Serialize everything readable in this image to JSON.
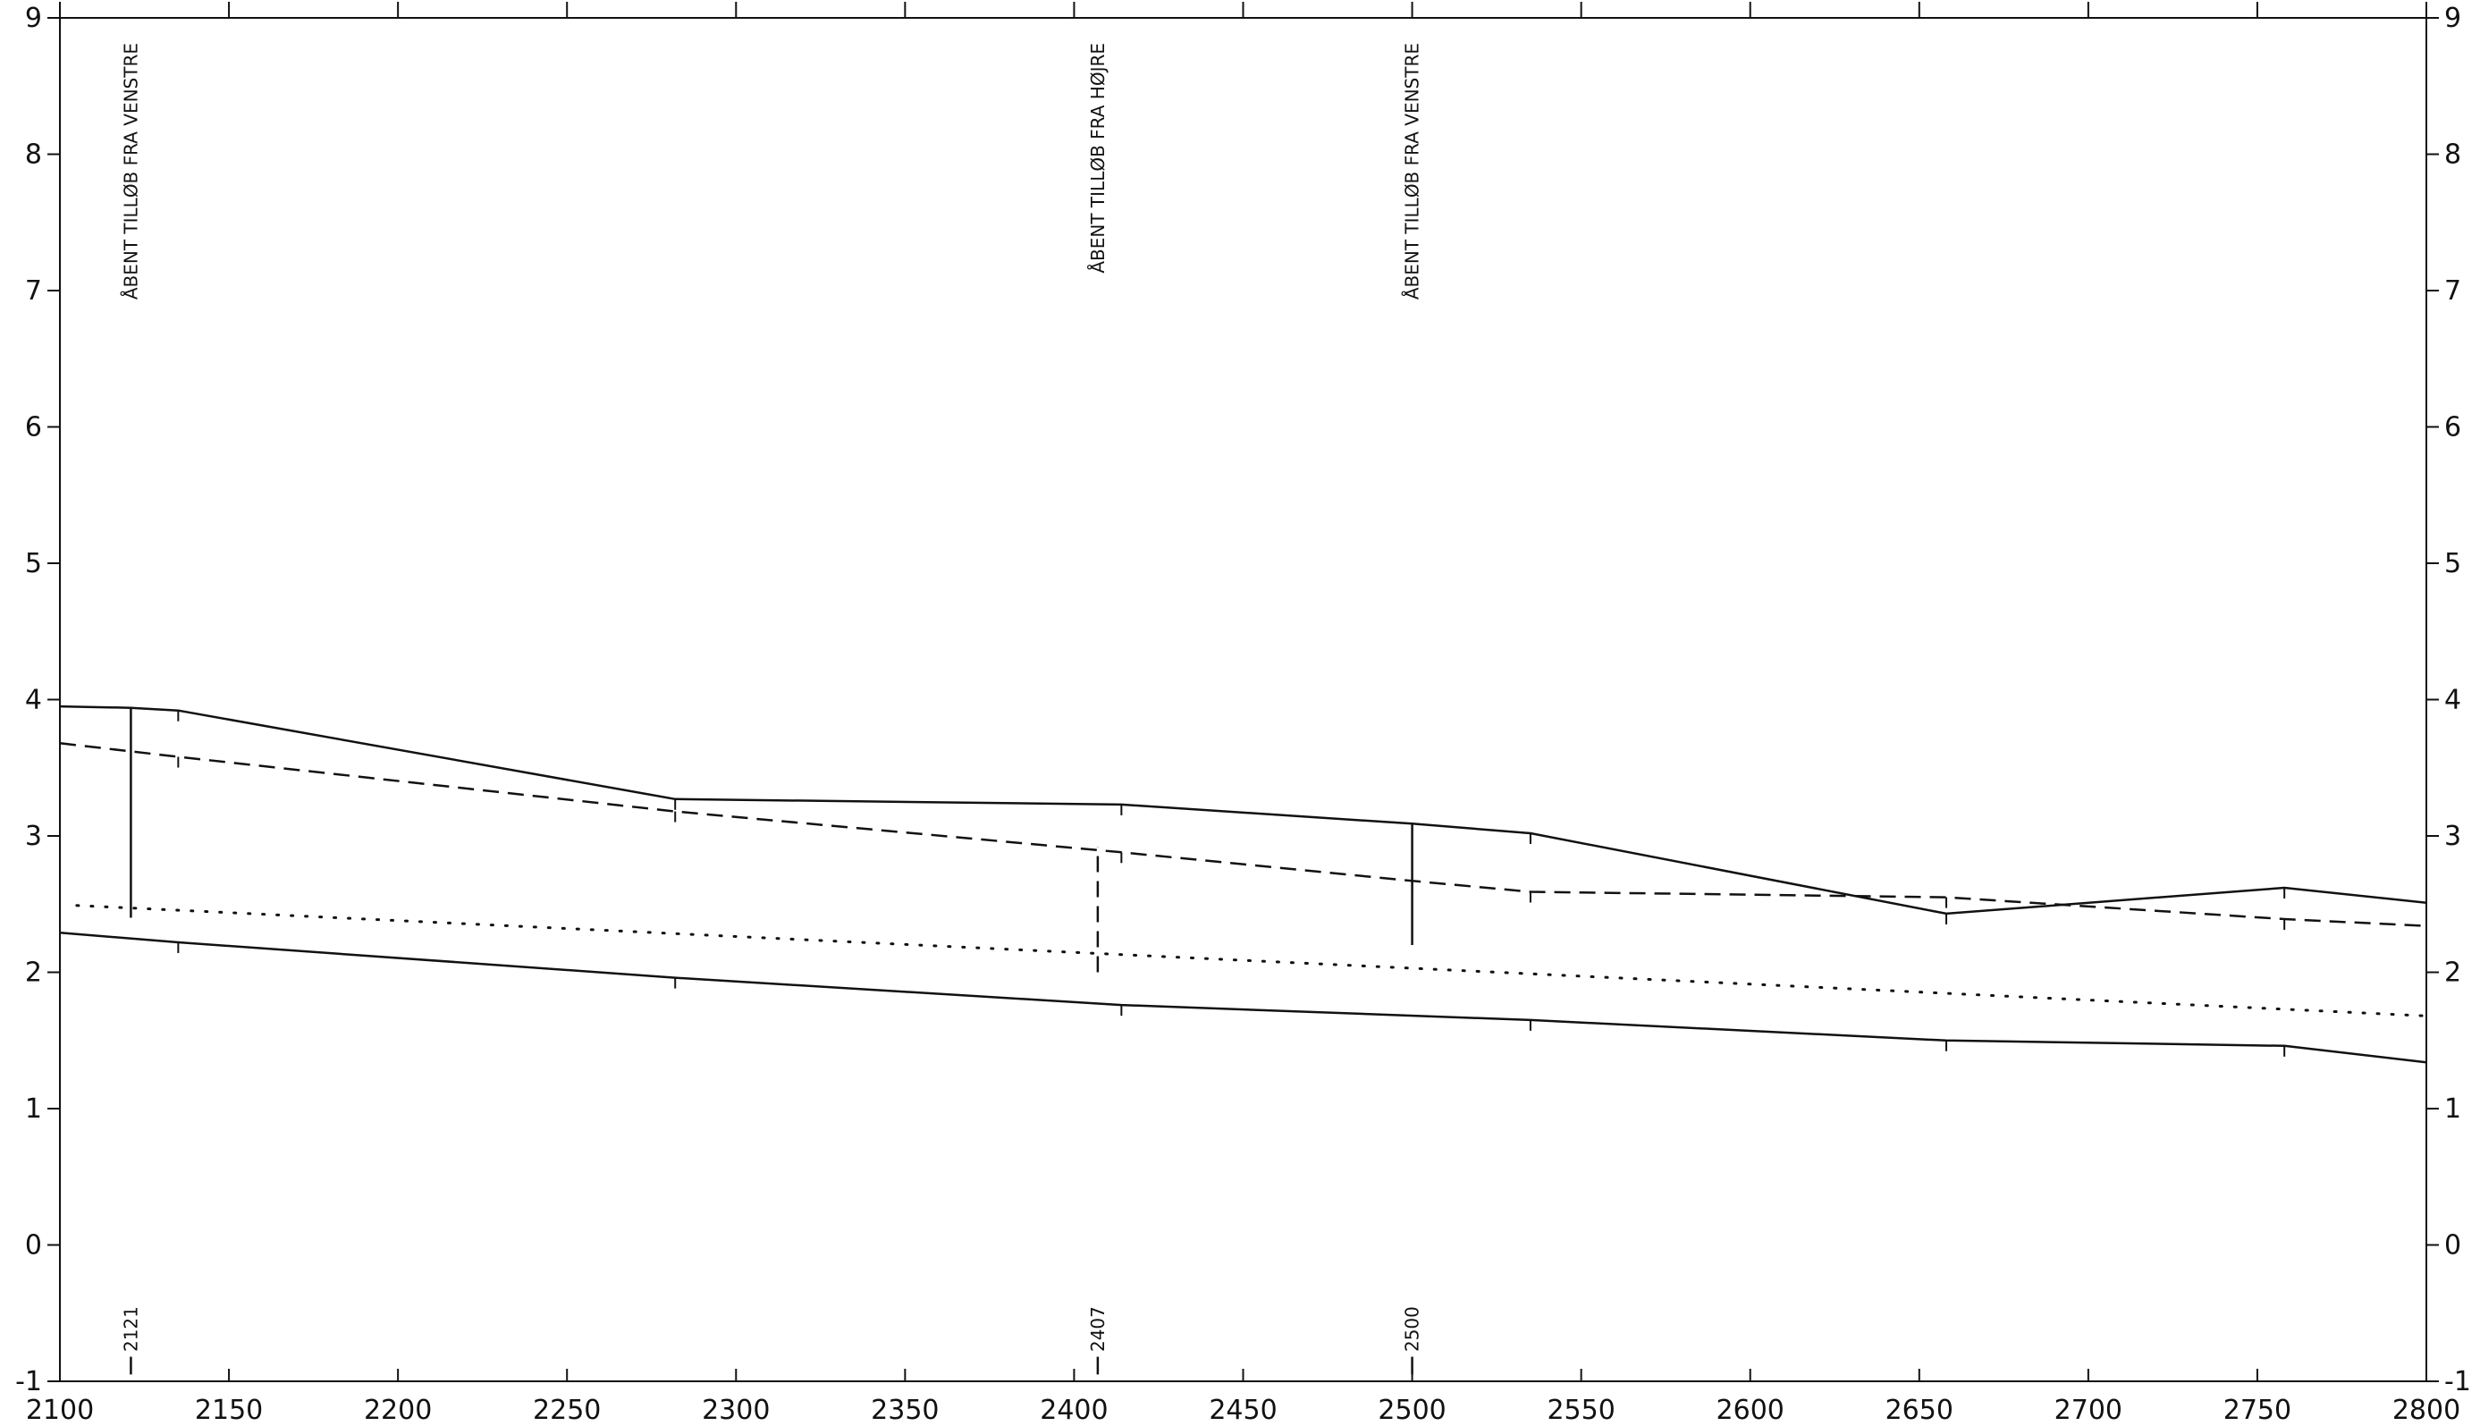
{
  "chart_data": {
    "type": "line",
    "title": "",
    "xlabel": "",
    "ylabel": "",
    "xlim": [
      2100,
      2800
    ],
    "ylim": [
      -1,
      9
    ],
    "grid": false,
    "x_ticks": [
      2100,
      2150,
      2200,
      2250,
      2300,
      2350,
      2400,
      2450,
      2500,
      2550,
      2600,
      2650,
      2700,
      2750,
      2800
    ],
    "y_ticks": [
      -1,
      0,
      1,
      2,
      3,
      4,
      5,
      6,
      7,
      8,
      9
    ],
    "series": [
      {
        "style": "solid",
        "points": [
          [
            2100,
            3.95
          ],
          [
            2121,
            3.94
          ],
          [
            2135,
            3.92
          ],
          [
            2282,
            3.27
          ],
          [
            2414,
            3.23
          ],
          [
            2500,
            3.09
          ],
          [
            2535,
            3.02
          ],
          [
            2658,
            2.43
          ],
          [
            2758,
            2.62
          ],
          [
            2800,
            2.51
          ]
        ]
      },
      {
        "style": "dashed",
        "points": [
          [
            2100,
            3.68
          ],
          [
            2135,
            3.58
          ],
          [
            2282,
            3.18
          ],
          [
            2414,
            2.88
          ],
          [
            2500,
            2.67
          ],
          [
            2535,
            2.59
          ],
          [
            2658,
            2.55
          ],
          [
            2758,
            2.39
          ],
          [
            2800,
            2.34
          ]
        ]
      },
      {
        "style": "dotted",
        "points": [
          [
            2105,
            2.49
          ],
          [
            2800,
            1.68
          ]
        ]
      },
      {
        "style": "solid",
        "points": [
          [
            2100,
            2.29
          ],
          [
            2135,
            2.22
          ],
          [
            2282,
            1.96
          ],
          [
            2414,
            1.76
          ],
          [
            2535,
            1.65
          ],
          [
            2658,
            1.5
          ],
          [
            2758,
            1.46
          ],
          [
            2800,
            1.34
          ]
        ]
      }
    ],
    "annotations": [
      {
        "x": 2121,
        "label": "ÅBENT TILLØB FRA VENSTRE",
        "station": "2121",
        "y_from": 2.4,
        "y_to": 3.94,
        "line_style": "solid"
      },
      {
        "x": 2407,
        "label": "ÅBENT TILLØB FRA HØJRE",
        "station": "2407",
        "y_from": 2.0,
        "y_to": 2.92,
        "line_style": "dashed"
      },
      {
        "x": 2500,
        "label": "ÅBENT TILLØB FRA VENSTRE",
        "station": "2500",
        "y_from": 2.2,
        "y_to": 3.09,
        "line_style": "solid"
      }
    ]
  }
}
